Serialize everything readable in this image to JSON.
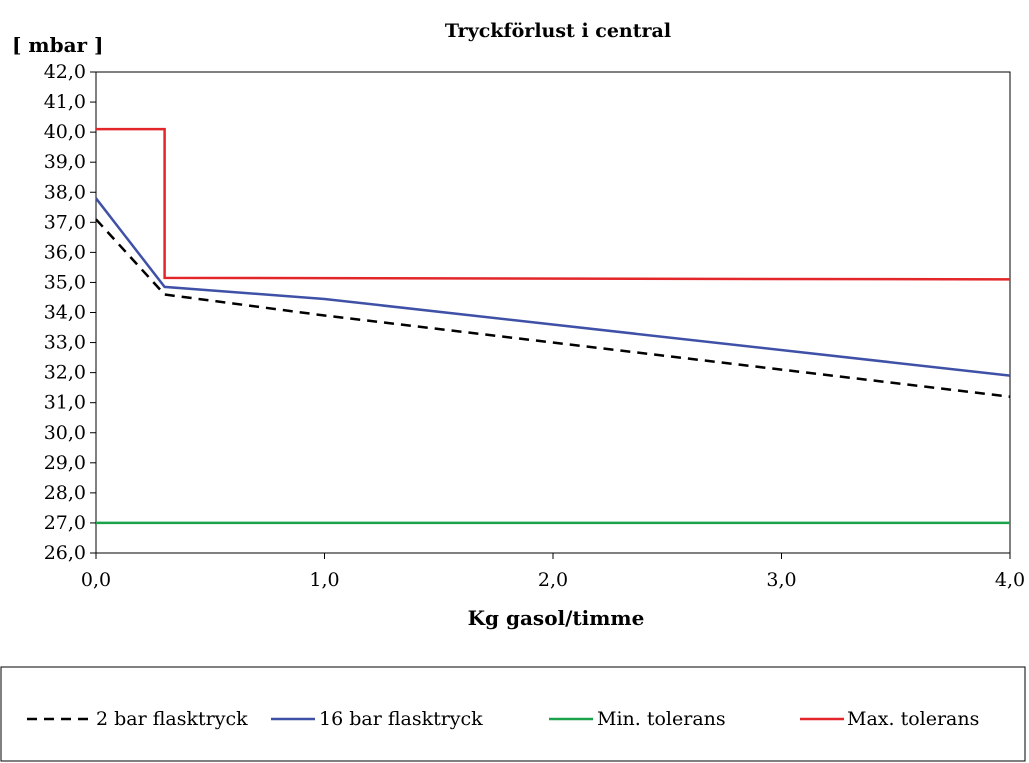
{
  "chart_data": {
    "type": "line",
    "title": "Tryckförlust i central",
    "xlabel": "Kg gasol/timme",
    "ylabel": "[ mbar ]",
    "xlim": [
      0,
      4
    ],
    "ylim": [
      26,
      42
    ],
    "x_ticks": [
      "0,0",
      "1,0",
      "2,0",
      "3,0",
      "4,0"
    ],
    "y_ticks": [
      "26,0",
      "27,0",
      "28,0",
      "29,0",
      "30,0",
      "31,0",
      "32,0",
      "33,0",
      "34,0",
      "35,0",
      "36,0",
      "37,0",
      "38,0",
      "39,0",
      "40,0",
      "41,0",
      "42,0"
    ],
    "grid": false,
    "legend_position": "bottom",
    "series": [
      {
        "name": "2 bar flasktryck",
        "color": "#000000",
        "style": "dashed",
        "points": [
          [
            0,
            37.1
          ],
          [
            0.3,
            34.6
          ],
          [
            1.0,
            33.9
          ],
          [
            4.0,
            31.2
          ]
        ]
      },
      {
        "name": "16 bar flasktryck",
        "color": "#3f51a6",
        "style": "solid",
        "points": [
          [
            0,
            37.8
          ],
          [
            0.3,
            34.85
          ],
          [
            1.0,
            34.45
          ],
          [
            4.0,
            31.9
          ]
        ]
      },
      {
        "name": "Min. tolerans",
        "color": "#1aa34a",
        "style": "solid",
        "points": [
          [
            0,
            27.0
          ],
          [
            4.0,
            27.0
          ]
        ]
      },
      {
        "name": "Max. tolerans",
        "color": "#e3262a",
        "style": "solid",
        "points": [
          [
            0,
            40.1
          ],
          [
            0.3,
            40.1
          ],
          [
            0.3,
            35.15
          ],
          [
            4.0,
            35.1
          ]
        ]
      }
    ]
  }
}
